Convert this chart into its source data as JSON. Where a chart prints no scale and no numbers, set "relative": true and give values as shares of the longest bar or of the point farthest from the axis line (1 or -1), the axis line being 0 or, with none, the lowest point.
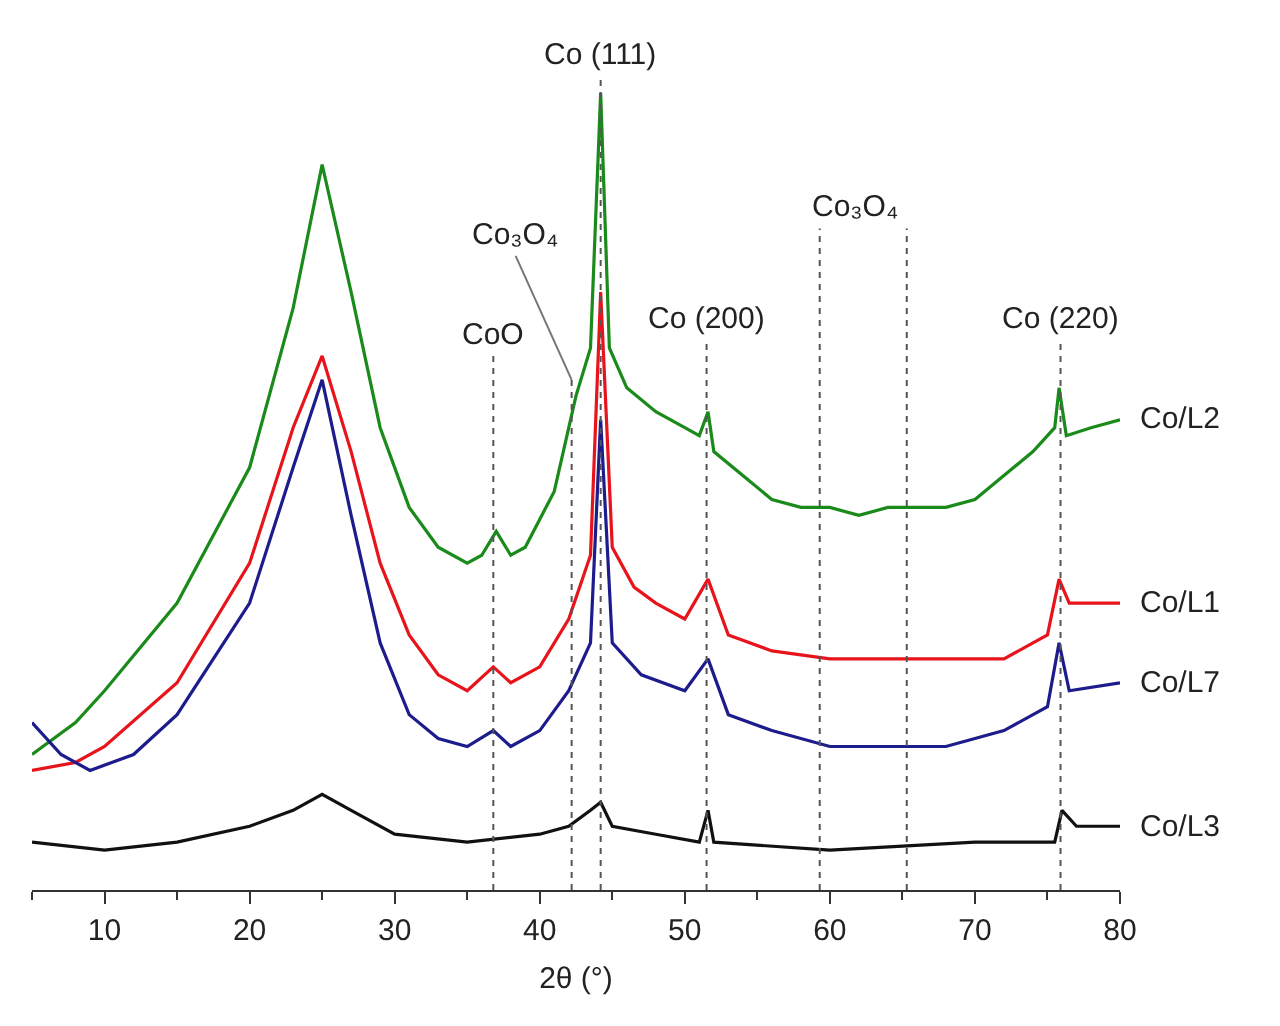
{
  "chart_data": {
    "type": "line",
    "relative": true,
    "xlabel": "2θ (°)",
    "xlim": [
      5,
      80
    ],
    "xticks": [
      {
        "value": 5,
        "label": null
      },
      10,
      {
        "value": 15,
        "label": null
      },
      20,
      {
        "value": 25,
        "label": null
      },
      30,
      {
        "value": 35,
        "label": null
      },
      40,
      {
        "value": 45,
        "label": null
      },
      50,
      {
        "value": 55,
        "label": null
      },
      60,
      {
        "value": 65,
        "label": null
      },
      70,
      {
        "value": 75,
        "label": null
      },
      80
    ],
    "grid": false,
    "legend": false,
    "line_style": "solid",
    "marker": "none",
    "series": [
      {
        "name": "Co/L2",
        "color": "#1a8a1a",
        "x": [
          5,
          8,
          10,
          15,
          20,
          23,
          25,
          27,
          29,
          31,
          33,
          35,
          36,
          37,
          38,
          39,
          41,
          42.5,
          43.5,
          44.2,
          44.8,
          46,
          48,
          50,
          51,
          51.6,
          52,
          54,
          56,
          58,
          60,
          62,
          64,
          66,
          68,
          70,
          72,
          74,
          75.5,
          75.8,
          76.3,
          78,
          80
        ],
        "values": [
          0.17,
          0.21,
          0.25,
          0.36,
          0.53,
          0.73,
          0.91,
          0.75,
          0.58,
          0.48,
          0.43,
          0.41,
          0.42,
          0.45,
          0.42,
          0.43,
          0.5,
          0.62,
          0.68,
          1.0,
          0.68,
          0.63,
          0.6,
          0.58,
          0.57,
          0.6,
          0.55,
          0.52,
          0.49,
          0.48,
          0.48,
          0.47,
          0.48,
          0.48,
          0.48,
          0.49,
          0.52,
          0.55,
          0.58,
          0.63,
          0.57,
          0.58,
          0.59
        ]
      },
      {
        "name": "Co/L1",
        "color": "#e8141c",
        "x": [
          5,
          8,
          10,
          15,
          20,
          23,
          25,
          27,
          29,
          31,
          33,
          35,
          36.8,
          38,
          40,
          42,
          43.5,
          44.2,
          45,
          46.5,
          48,
          50,
          51.6,
          53,
          56,
          60,
          64,
          68,
          72,
          75,
          75.8,
          76.5,
          80
        ],
        "values": [
          0.15,
          0.16,
          0.18,
          0.26,
          0.41,
          0.58,
          0.67,
          0.55,
          0.41,
          0.32,
          0.27,
          0.25,
          0.28,
          0.26,
          0.28,
          0.34,
          0.42,
          0.75,
          0.43,
          0.38,
          0.36,
          0.34,
          0.39,
          0.32,
          0.3,
          0.29,
          0.29,
          0.29,
          0.29,
          0.32,
          0.39,
          0.36,
          0.36
        ]
      },
      {
        "name": "Co/L7",
        "color": "#1c1c8c",
        "x": [
          5,
          7,
          9,
          12,
          15,
          20,
          23,
          25,
          27,
          29,
          31,
          33,
          35,
          36.8,
          38,
          40,
          42,
          43.5,
          44.2,
          45,
          47,
          50,
          51.6,
          53,
          56,
          60,
          64,
          68,
          72,
          75,
          75.8,
          76.5,
          80
        ],
        "values": [
          0.21,
          0.17,
          0.15,
          0.17,
          0.22,
          0.36,
          0.53,
          0.64,
          0.47,
          0.31,
          0.22,
          0.19,
          0.18,
          0.2,
          0.18,
          0.2,
          0.25,
          0.31,
          0.59,
          0.31,
          0.27,
          0.25,
          0.29,
          0.22,
          0.2,
          0.18,
          0.18,
          0.18,
          0.2,
          0.23,
          0.31,
          0.25,
          0.26
        ]
      },
      {
        "name": "Co/L3",
        "color": "#111111",
        "x": [
          5,
          10,
          15,
          20,
          23,
          25,
          27,
          30,
          35,
          40,
          42,
          43.5,
          44.2,
          45,
          48,
          51,
          51.6,
          52,
          60,
          70,
          75.5,
          76,
          77,
          80
        ],
        "values": [
          0.06,
          0.05,
          0.06,
          0.08,
          0.1,
          0.12,
          0.1,
          0.07,
          0.06,
          0.07,
          0.08,
          0.1,
          0.11,
          0.08,
          0.07,
          0.06,
          0.1,
          0.06,
          0.05,
          0.06,
          0.06,
          0.1,
          0.08,
          0.08
        ]
      }
    ],
    "ref_lines": [
      {
        "axis": "x",
        "value": 36.8,
        "color": "#555555",
        "line_style": "dotted"
      },
      {
        "axis": "x",
        "value": 42.2,
        "color": "#555555",
        "line_style": "dotted"
      },
      {
        "axis": "x",
        "value": 44.2,
        "color": "#555555",
        "line_style": "dotted"
      },
      {
        "axis": "x",
        "value": 51.5,
        "color": "#555555",
        "line_style": "dotted"
      },
      {
        "axis": "x",
        "value": 59.3,
        "color": "#555555",
        "line_style": "dotted"
      },
      {
        "axis": "x",
        "value": 65.3,
        "color": "#555555",
        "line_style": "dotted"
      },
      {
        "axis": "x",
        "value": 75.9,
        "color": "#555555",
        "line_style": "dotted"
      }
    ],
    "annotations": [
      {
        "text": "CoO",
        "x": 36.8,
        "y": 0.67
      },
      {
        "text": "Co₃O₄",
        "x": 42.2,
        "y": 0.64
      },
      {
        "text": "Co (111)",
        "x": 44.2,
        "y": 1.02
      },
      {
        "text": "Co (200)",
        "x": 51.5,
        "y": 0.69
      },
      {
        "text": "Co₃O₄",
        "x": 59.3,
        "y": 0.83
      },
      {
        "text": "Co (220)",
        "x": 75.9,
        "y": 0.69
      }
    ]
  }
}
